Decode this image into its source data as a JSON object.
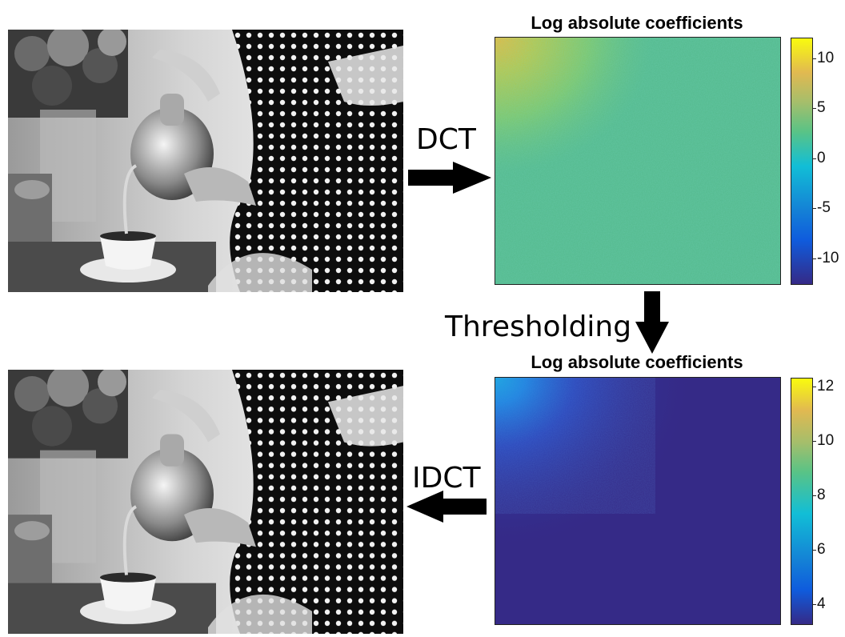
{
  "top_plot": {
    "title": "Log absolute coefficients",
    "colorbar_ticks": [
      "10",
      "5",
      "0",
      "-5",
      "-10"
    ],
    "colorbar_values": [
      10,
      5,
      0,
      -5,
      -10
    ],
    "colorbar_range": [
      -12.5,
      12
    ]
  },
  "bottom_plot": {
    "title": "Log absolute coefficients",
    "colorbar_ticks": [
      "12",
      "10",
      "8",
      "6",
      "4"
    ],
    "colorbar_values": [
      12,
      10,
      8,
      6,
      4
    ],
    "colorbar_range": [
      3.3,
      12.3
    ]
  },
  "steps": {
    "dct": "DCT",
    "thresholding": "Thresholding",
    "idct": "IDCT"
  },
  "colors": {
    "parula_low": "#352a87",
    "parula_mid_low": "#0f5cdd",
    "parula_mid": "#12bed6",
    "parula_mid_high": "#7ccc4c",
    "parula_high": "#f9fb0e",
    "top_field": "#5fbf7a"
  }
}
